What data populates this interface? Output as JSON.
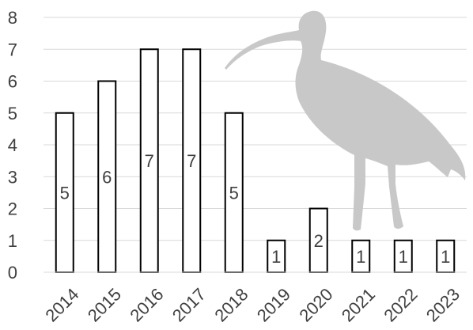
{
  "chart_data": {
    "type": "bar",
    "title": "",
    "xlabel": "",
    "ylabel": "",
    "categories": [
      "2014",
      "2015",
      "2016",
      "2017",
      "2018",
      "2019",
      "2020",
      "2021",
      "2022",
      "2023"
    ],
    "values": [
      5,
      6,
      7,
      7,
      5,
      1,
      2,
      1,
      1,
      1
    ],
    "data_labels": [
      "5",
      "6",
      "7",
      "7",
      "5",
      "1",
      "2",
      "1",
      "1",
      "1"
    ],
    "ylim": [
      0,
      8
    ],
    "yticks": [
      "0",
      "1",
      "2",
      "3",
      "4",
      "5",
      "6",
      "7",
      "8"
    ],
    "grid": true,
    "legend": "none",
    "bar_fill": "#ffffff",
    "bar_stroke": "#000000",
    "grid_color": "#d9d9d9",
    "watermark_icon": "curlew-bird-silhouette-icon",
    "watermark_color": "#c8c8c8"
  }
}
